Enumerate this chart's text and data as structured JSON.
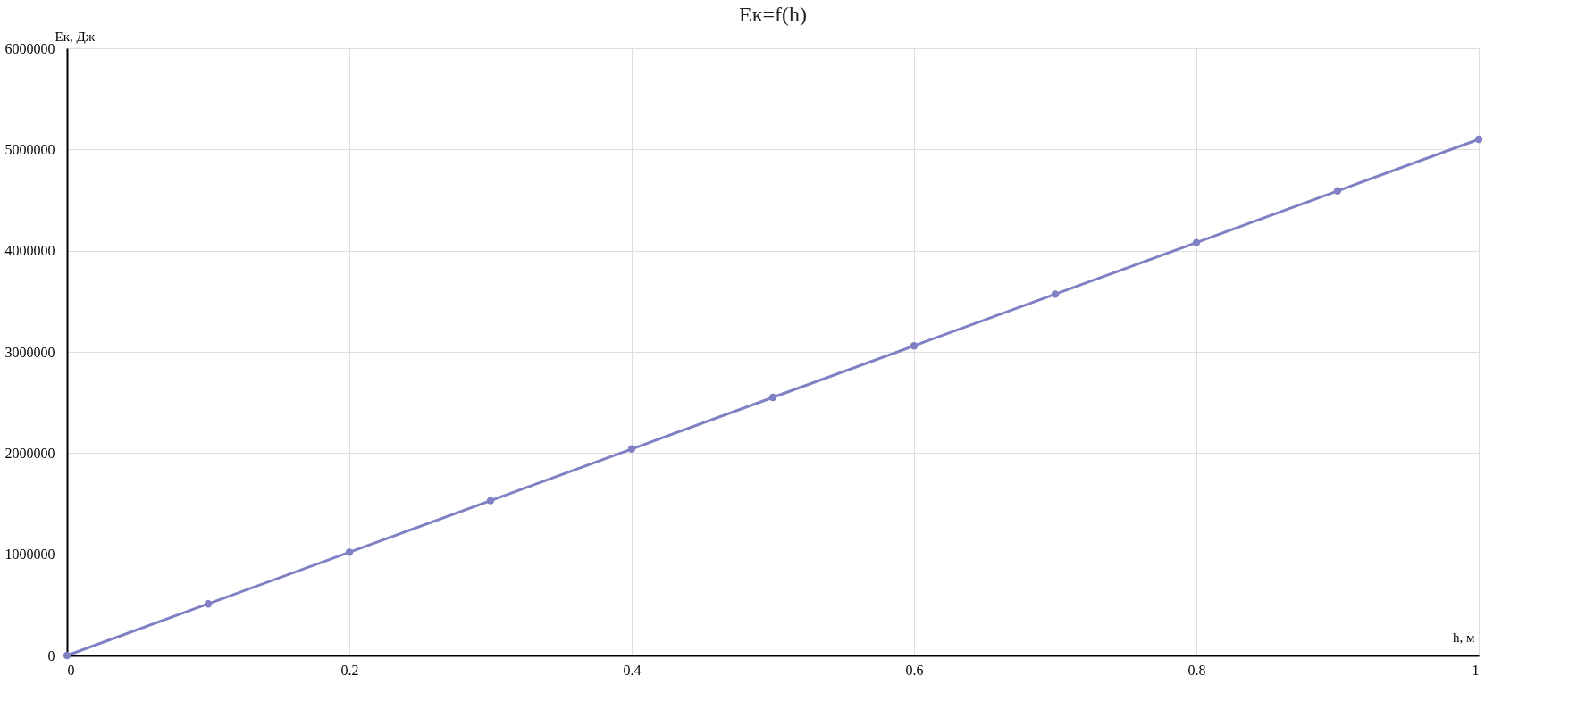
{
  "chart_data": {
    "type": "line",
    "title": "Eк=f(h)",
    "xlabel": "h, м",
    "ylabel": "Eк, Дж",
    "x": [
      0,
      0.1,
      0.2,
      0.3,
      0.4,
      0.5,
      0.6,
      0.7,
      0.8,
      0.9,
      1
    ],
    "series": [
      {
        "color": "#8080c4",
        "values": [
          0,
          510000,
          1020000,
          1530000,
          2040000,
          2550000,
          3060000,
          3570000,
          4080000,
          4590000,
          5100000
        ]
      }
    ],
    "xlim": [
      0,
      1
    ],
    "xticks": [
      0,
      0.2,
      0.4,
      0.6,
      0.8,
      1
    ],
    "ylim": [
      0,
      6000000
    ],
    "yticks": [
      0,
      1000000,
      2000000,
      3000000,
      4000000,
      5000000,
      6000000
    ],
    "grid": true,
    "marker": "circle",
    "line_style": "solid"
  }
}
